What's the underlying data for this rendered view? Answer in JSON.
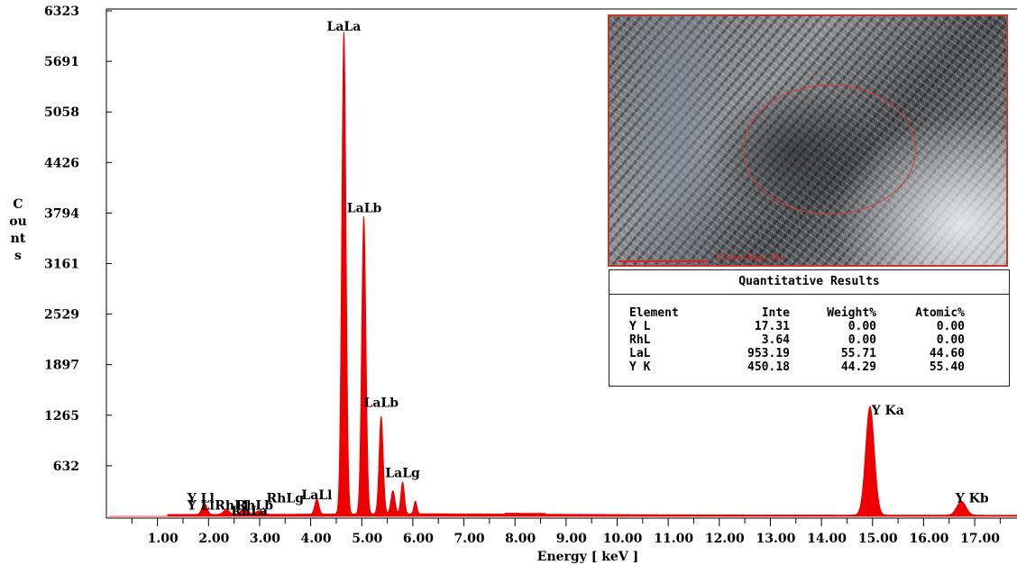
{
  "chart_data": {
    "type": "area",
    "ylabel": "Counts",
    "xlabel": "Energy [ keV ]",
    "color": "#ee0000",
    "ylim": [
      0,
      6323
    ],
    "xlim": [
      0,
      18.05
    ],
    "yticks": [
      632,
      1265,
      1897,
      2529,
      3161,
      3794,
      4426,
      5058,
      5691,
      6323
    ],
    "yticklabels": [
      "632",
      "1265",
      "1897",
      "2529",
      "3161",
      "3794",
      "4426",
      "5058",
      "5691",
      "6323"
    ],
    "xticklabels": [
      "1.00",
      "2.00",
      "3.00",
      "4.00",
      "5.00",
      "6.00",
      "7.00",
      "8.00",
      "9.00",
      "10.00",
      "11.00",
      "12.00",
      "13.00",
      "14.00",
      "15.00",
      "16.00",
      "17.00"
    ],
    "series": [
      {
        "peaks": [
          {
            "x": 1.92,
            "y": 140,
            "w": 0.05
          },
          {
            "x": 2.35,
            "y": 60,
            "w": 0.06
          },
          {
            "x": 2.7,
            "y": 70,
            "w": 0.07
          },
          {
            "x": 3.0,
            "y": 45,
            "w": 0.07
          },
          {
            "x": 4.12,
            "y": 190,
            "w": 0.04
          },
          {
            "x": 4.65,
            "y": 6030,
            "w": 0.042
          },
          {
            "x": 5.04,
            "y": 3720,
            "w": 0.042
          },
          {
            "x": 5.38,
            "y": 1220,
            "w": 0.04
          },
          {
            "x": 5.61,
            "y": 290,
            "w": 0.04
          },
          {
            "x": 5.8,
            "y": 400,
            "w": 0.035
          },
          {
            "x": 6.05,
            "y": 160,
            "w": 0.03
          },
          {
            "x": 14.95,
            "y": 1360,
            "w": 0.085
          },
          {
            "x": 16.74,
            "y": 175,
            "w": 0.09
          }
        ]
      }
    ],
    "peak_labels": [
      {
        "text": "LaLa",
        "x": 4.65,
        "y": 6050
      },
      {
        "text": "LaLb",
        "x": 5.05,
        "y": 3780
      },
      {
        "text": "LaLb",
        "x": 5.38,
        "y": 1345
      },
      {
        "text": "LaLg",
        "x": 5.8,
        "y": 470
      },
      {
        "text": "LaLl",
        "x": 4.12,
        "y": 190
      },
      {
        "text": "Y Ll",
        "x": 1.85,
        "y": 150
      },
      {
        "text": "Y Ll",
        "x": 1.85,
        "y": 60
      },
      {
        "text": "RhLl",
        "x": 2.45,
        "y": 60
      },
      {
        "text": "RhLb",
        "x": 2.9,
        "y": 60
      },
      {
        "text": "RhLa",
        "x": 2.8,
        "y": -10
      },
      {
        "text": "RhLg",
        "x": 3.5,
        "y": 150
      },
      {
        "text": "Y Ka",
        "x": 15.3,
        "y": 1250
      },
      {
        "text": "Y Kb",
        "x": 16.95,
        "y": 150
      }
    ]
  },
  "results": {
    "title": "Quantitative Results",
    "headers": [
      "Element",
      "Inte",
      "Weight%",
      "Atomic%"
    ],
    "rows": [
      [
        "Y L",
        "17.31",
        "0.00",
        "0.00"
      ],
      [
        "RhL",
        "3.64",
        "0.00",
        "0.00"
      ],
      [
        "LaL",
        "953.19",
        "55.71",
        "44.60"
      ],
      [
        "Y K",
        "450.18",
        "44.29",
        "55.40"
      ]
    ]
  },
  "photo": {
    "scale_label": "0.1mm  Mag. 70x"
  }
}
